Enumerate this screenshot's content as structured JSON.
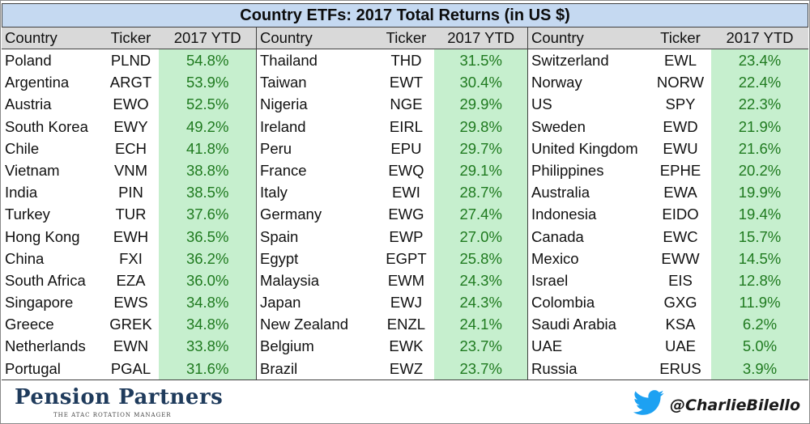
{
  "title": "Country ETFs: 2017 Total Returns (in US $)",
  "headers": {
    "country": "Country",
    "ticker": "Ticker",
    "ytd": "2017 YTD"
  },
  "columns": [
    {
      "rows": [
        {
          "country": "Poland",
          "ticker": "PLND",
          "ytd": "54.8%"
        },
        {
          "country": "Argentina",
          "ticker": "ARGT",
          "ytd": "53.9%"
        },
        {
          "country": "Austria",
          "ticker": "EWO",
          "ytd": "52.5%"
        },
        {
          "country": "South Korea",
          "ticker": "EWY",
          "ytd": "49.2%"
        },
        {
          "country": "Chile",
          "ticker": "ECH",
          "ytd": "41.8%"
        },
        {
          "country": "Vietnam",
          "ticker": "VNM",
          "ytd": "38.8%"
        },
        {
          "country": "India",
          "ticker": "PIN",
          "ytd": "38.5%"
        },
        {
          "country": "Turkey",
          "ticker": "TUR",
          "ytd": "37.6%"
        },
        {
          "country": "Hong Kong",
          "ticker": "EWH",
          "ytd": "36.5%"
        },
        {
          "country": "China",
          "ticker": "FXI",
          "ytd": "36.2%"
        },
        {
          "country": "South Africa",
          "ticker": "EZA",
          "ytd": "36.0%"
        },
        {
          "country": "Singapore",
          "ticker": "EWS",
          "ytd": "34.8%"
        },
        {
          "country": "Greece",
          "ticker": "GREK",
          "ytd": "34.8%"
        },
        {
          "country": "Netherlands",
          "ticker": "EWN",
          "ytd": "33.8%"
        },
        {
          "country": "Portugal",
          "ticker": "PGAL",
          "ytd": "31.6%"
        }
      ]
    },
    {
      "rows": [
        {
          "country": "Thailand",
          "ticker": "THD",
          "ytd": "31.5%"
        },
        {
          "country": "Taiwan",
          "ticker": "EWT",
          "ytd": "30.4%"
        },
        {
          "country": "Nigeria",
          "ticker": "NGE",
          "ytd": "29.9%"
        },
        {
          "country": "Ireland",
          "ticker": "EIRL",
          "ytd": "29.8%"
        },
        {
          "country": "Peru",
          "ticker": "EPU",
          "ytd": "29.7%"
        },
        {
          "country": "France",
          "ticker": "EWQ",
          "ytd": "29.1%"
        },
        {
          "country": "Italy",
          "ticker": "EWI",
          "ytd": "28.7%"
        },
        {
          "country": "Germany",
          "ticker": "EWG",
          "ytd": "27.4%"
        },
        {
          "country": "Spain",
          "ticker": "EWP",
          "ytd": "27.0%"
        },
        {
          "country": "Egypt",
          "ticker": "EGPT",
          "ytd": "25.8%"
        },
        {
          "country": "Malaysia",
          "ticker": "EWM",
          "ytd": "24.3%"
        },
        {
          "country": "Japan",
          "ticker": "EWJ",
          "ytd": "24.3%"
        },
        {
          "country": "New Zealand",
          "ticker": "ENZL",
          "ytd": "24.1%"
        },
        {
          "country": "Belgium",
          "ticker": "EWK",
          "ytd": "23.7%"
        },
        {
          "country": "Brazil",
          "ticker": "EWZ",
          "ytd": "23.7%"
        }
      ]
    },
    {
      "rows": [
        {
          "country": "Switzerland",
          "ticker": "EWL",
          "ytd": "23.4%"
        },
        {
          "country": "Norway",
          "ticker": "NORW",
          "ytd": "22.4%"
        },
        {
          "country": "US",
          "ticker": "SPY",
          "ytd": "22.3%"
        },
        {
          "country": "Sweden",
          "ticker": "EWD",
          "ytd": "21.9%"
        },
        {
          "country": "United Kingdom",
          "ticker": "EWU",
          "ytd": "21.6%"
        },
        {
          "country": "Philippines",
          "ticker": "EPHE",
          "ytd": "20.2%"
        },
        {
          "country": "Australia",
          "ticker": "EWA",
          "ytd": "19.9%"
        },
        {
          "country": "Indonesia",
          "ticker": "EIDO",
          "ytd": "19.4%"
        },
        {
          "country": "Canada",
          "ticker": "EWC",
          "ytd": "15.7%"
        },
        {
          "country": "Mexico",
          "ticker": "EWW",
          "ytd": "14.5%"
        },
        {
          "country": "Israel",
          "ticker": "EIS",
          "ytd": "12.8%"
        },
        {
          "country": "Colombia",
          "ticker": "GXG",
          "ytd": "11.9%"
        },
        {
          "country": "Saudi Arabia",
          "ticker": "KSA",
          "ytd": "6.2%"
        },
        {
          "country": "UAE",
          "ticker": "UAE",
          "ytd": "5.0%"
        },
        {
          "country": "Russia",
          "ticker": "ERUS",
          "ytd": "3.9%"
        }
      ]
    }
  ],
  "footer": {
    "brand": "Pension Partners",
    "brand_tagline": "THE ATAC ROTATION MANAGER",
    "handle": "@CharlieBilello",
    "handle_icon": "twitter-bird-icon"
  },
  "colors": {
    "title_bg": "#c5d9f1",
    "header_bg": "#d9d9d9",
    "ytd_bg": "#c6efce",
    "ytd_text": "#1f7a1f",
    "brand": "#1f3b5c",
    "twitter": "#1da1f2"
  }
}
